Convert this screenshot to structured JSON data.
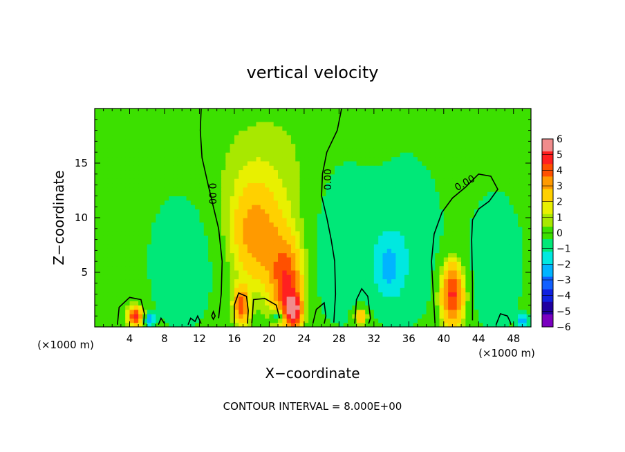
{
  "chart_data": {
    "type": "heatmap",
    "title": "vertical velocity",
    "xlabel": "X−coordinate",
    "ylabel": "Z−coordinate",
    "x_unit_left": "(×1000 m)",
    "x_unit_right": "(×1000 m)",
    "xlim": [
      0,
      50
    ],
    "ylim": [
      0,
      20
    ],
    "x_ticks": [
      4,
      8,
      12,
      16,
      20,
      24,
      28,
      32,
      36,
      40,
      44,
      48
    ],
    "x_tick_labels": [
      "4",
      "8",
      "12",
      "16",
      "20",
      "24",
      "28",
      "32",
      "36",
      "40",
      "44",
      "48"
    ],
    "y_ticks": [
      5,
      10,
      15
    ],
    "y_tick_labels": [
      "5",
      "10",
      "15"
    ],
    "colorbar": {
      "levels": [
        6,
        5,
        4,
        3,
        2,
        1,
        0,
        -1,
        -2,
        -3,
        -4,
        -5,
        -6
      ],
      "labels": [
        "6",
        "5",
        "4",
        "3",
        "2",
        "1",
        "0",
        "−1",
        "−2",
        "−3",
        "−4",
        "−5",
        "−6"
      ],
      "colors": [
        "#f08c8c",
        "#ff2020",
        "#ff5000",
        "#ff9a00",
        "#ffd000",
        "#e8f000",
        "#a8e800",
        "#3ce000",
        "#00e878",
        "#00e8e0",
        "#00b4ff",
        "#1060ff",
        "#1020e0",
        "#2000a0",
        "#7a00c0"
      ]
    },
    "contour_label": "0.00",
    "contour_interval_text": "CONTOUR INTERVAL = 8.000E+00",
    "blobs": [
      {
        "x": 4.7,
        "z": 1.0,
        "w": 5.0,
        "sx": 0.6,
        "sz": 0.6
      },
      {
        "x": 6.3,
        "z": 0.7,
        "w": -3.0,
        "sx": 0.4,
        "sz": 0.4
      },
      {
        "x": 16.8,
        "z": 2.0,
        "w": 4.0,
        "sx": 0.6,
        "sz": 1.2
      },
      {
        "x": 18.2,
        "z": 9.0,
        "w": 2.0,
        "sx": 1.8,
        "sz": 2.8
      },
      {
        "x": 22.0,
        "z": 4.0,
        "w": 4.0,
        "sx": 1.2,
        "sz": 2.5
      },
      {
        "x": 22.8,
        "z": 1.5,
        "w": 5.0,
        "sx": 0.7,
        "sz": 1.1
      },
      {
        "x": 21.0,
        "z": 1.0,
        "w": -2.0,
        "sx": 0.5,
        "sz": 0.4
      },
      {
        "x": 20.0,
        "z": 7.0,
        "w": 1.5,
        "sx": 2.5,
        "sz": 3.0
      },
      {
        "x": 30.5,
        "z": 1.0,
        "w": 3.0,
        "sx": 0.5,
        "sz": 0.5
      },
      {
        "x": 33.8,
        "z": 5.5,
        "w": -2.0,
        "sx": 1.2,
        "sz": 2.0
      },
      {
        "x": 41.0,
        "z": 3.0,
        "w": 5.0,
        "sx": 0.9,
        "sz": 2.0
      },
      {
        "x": 49.0,
        "z": 0.6,
        "w": -2.5,
        "sx": 0.4,
        "sz": 0.4
      },
      {
        "x": 10.0,
        "z": 6.0,
        "w": -0.8,
        "sx": 3.0,
        "sz": 5.0
      },
      {
        "x": 28.0,
        "z": 8.0,
        "w": -0.8,
        "sx": 3.0,
        "sz": 6.0
      },
      {
        "x": 36.0,
        "z": 8.0,
        "w": -0.8,
        "sx": 3.0,
        "sz": 6.0
      },
      {
        "x": 46.0,
        "z": 6.0,
        "w": -0.8,
        "sx": 2.5,
        "sz": 5.0
      },
      {
        "x": 19.5,
        "z": 14.0,
        "w": 0.8,
        "sx": 4.0,
        "sz": 4.0
      }
    ],
    "contours": [
      [
        [
          12.2,
          20
        ],
        [
          12.1,
          18
        ],
        [
          12.3,
          15.5
        ],
        [
          13.0,
          13
        ],
        [
          13.6,
          11
        ],
        [
          14.2,
          9
        ],
        [
          14.6,
          6
        ],
        [
          14.5,
          3
        ],
        [
          14.2,
          0.8
        ]
      ],
      [
        [
          28.3,
          20
        ],
        [
          27.8,
          18
        ],
        [
          26.6,
          16
        ],
        [
          26.1,
          14
        ],
        [
          26.0,
          12
        ],
        [
          26.6,
          10
        ],
        [
          27.1,
          8
        ],
        [
          27.5,
          6
        ],
        [
          27.6,
          3
        ],
        [
          27.4,
          0.4
        ]
      ],
      [
        [
          39.0,
          0.3
        ],
        [
          38.8,
          3
        ],
        [
          38.6,
          6
        ],
        [
          38.9,
          8.5
        ],
        [
          39.8,
          10.5
        ],
        [
          41.0,
          11.8
        ],
        [
          42.5,
          12.8
        ],
        [
          44.0,
          14.0
        ],
        [
          45.4,
          13.8
        ],
        [
          46.2,
          12.6
        ],
        [
          45.2,
          11.5
        ],
        [
          44.0,
          10.8
        ],
        [
          43.3,
          9.8
        ],
        [
          43.2,
          8
        ],
        [
          43.3,
          4
        ],
        [
          43.3,
          0.6
        ]
      ],
      [
        [
          2.6,
          0.2
        ],
        [
          2.8,
          1.8
        ],
        [
          4.0,
          2.7
        ],
        [
          5.3,
          2.5
        ],
        [
          5.7,
          1.2
        ],
        [
          5.6,
          0.2
        ]
      ],
      [
        [
          16.0,
          0.3
        ],
        [
          16.0,
          2.0
        ],
        [
          16.5,
          3.1
        ],
        [
          17.4,
          2.8
        ],
        [
          17.6,
          1.5
        ],
        [
          17.5,
          0.3
        ]
      ],
      [
        [
          18.0,
          0.3
        ],
        [
          18.2,
          2.5
        ],
        [
          19.5,
          2.6
        ],
        [
          20.8,
          2.0
        ],
        [
          21.2,
          0.8
        ]
      ],
      [
        [
          25.0,
          0.3
        ],
        [
          25.4,
          1.6
        ],
        [
          26.3,
          2.2
        ],
        [
          26.5,
          1.0
        ],
        [
          26.3,
          0.3
        ]
      ],
      [
        [
          29.8,
          0.3
        ],
        [
          30.0,
          2.5
        ],
        [
          30.6,
          3.5
        ],
        [
          31.3,
          2.8
        ],
        [
          31.6,
          0.8
        ],
        [
          31.4,
          0.3
        ]
      ],
      [
        [
          7.3,
          0.2
        ],
        [
          7.6,
          0.8
        ],
        [
          8.0,
          0.3
        ]
      ],
      [
        [
          10.7,
          0.2
        ],
        [
          11.0,
          0.8
        ],
        [
          11.5,
          0.5
        ],
        [
          11.8,
          1.0
        ],
        [
          12.2,
          0.3
        ]
      ],
      [
        [
          13.4,
          1.0
        ],
        [
          13.6,
          1.4
        ],
        [
          13.8,
          1.0
        ],
        [
          13.6,
          0.7
        ],
        [
          13.4,
          1.0
        ]
      ],
      [
        [
          46.0,
          0.2
        ],
        [
          46.5,
          1.2
        ],
        [
          47.3,
          1.0
        ],
        [
          47.6,
          0.5
        ],
        [
          47.7,
          0.2
        ]
      ]
    ],
    "contour_labels_at": [
      {
        "x": 13.5,
        "z": 12.2,
        "rot": 90
      },
      {
        "x": 26.7,
        "z": 13.5,
        "rot": -90
      },
      {
        "x": 42.4,
        "z": 13.2,
        "rot": -30
      }
    ]
  }
}
